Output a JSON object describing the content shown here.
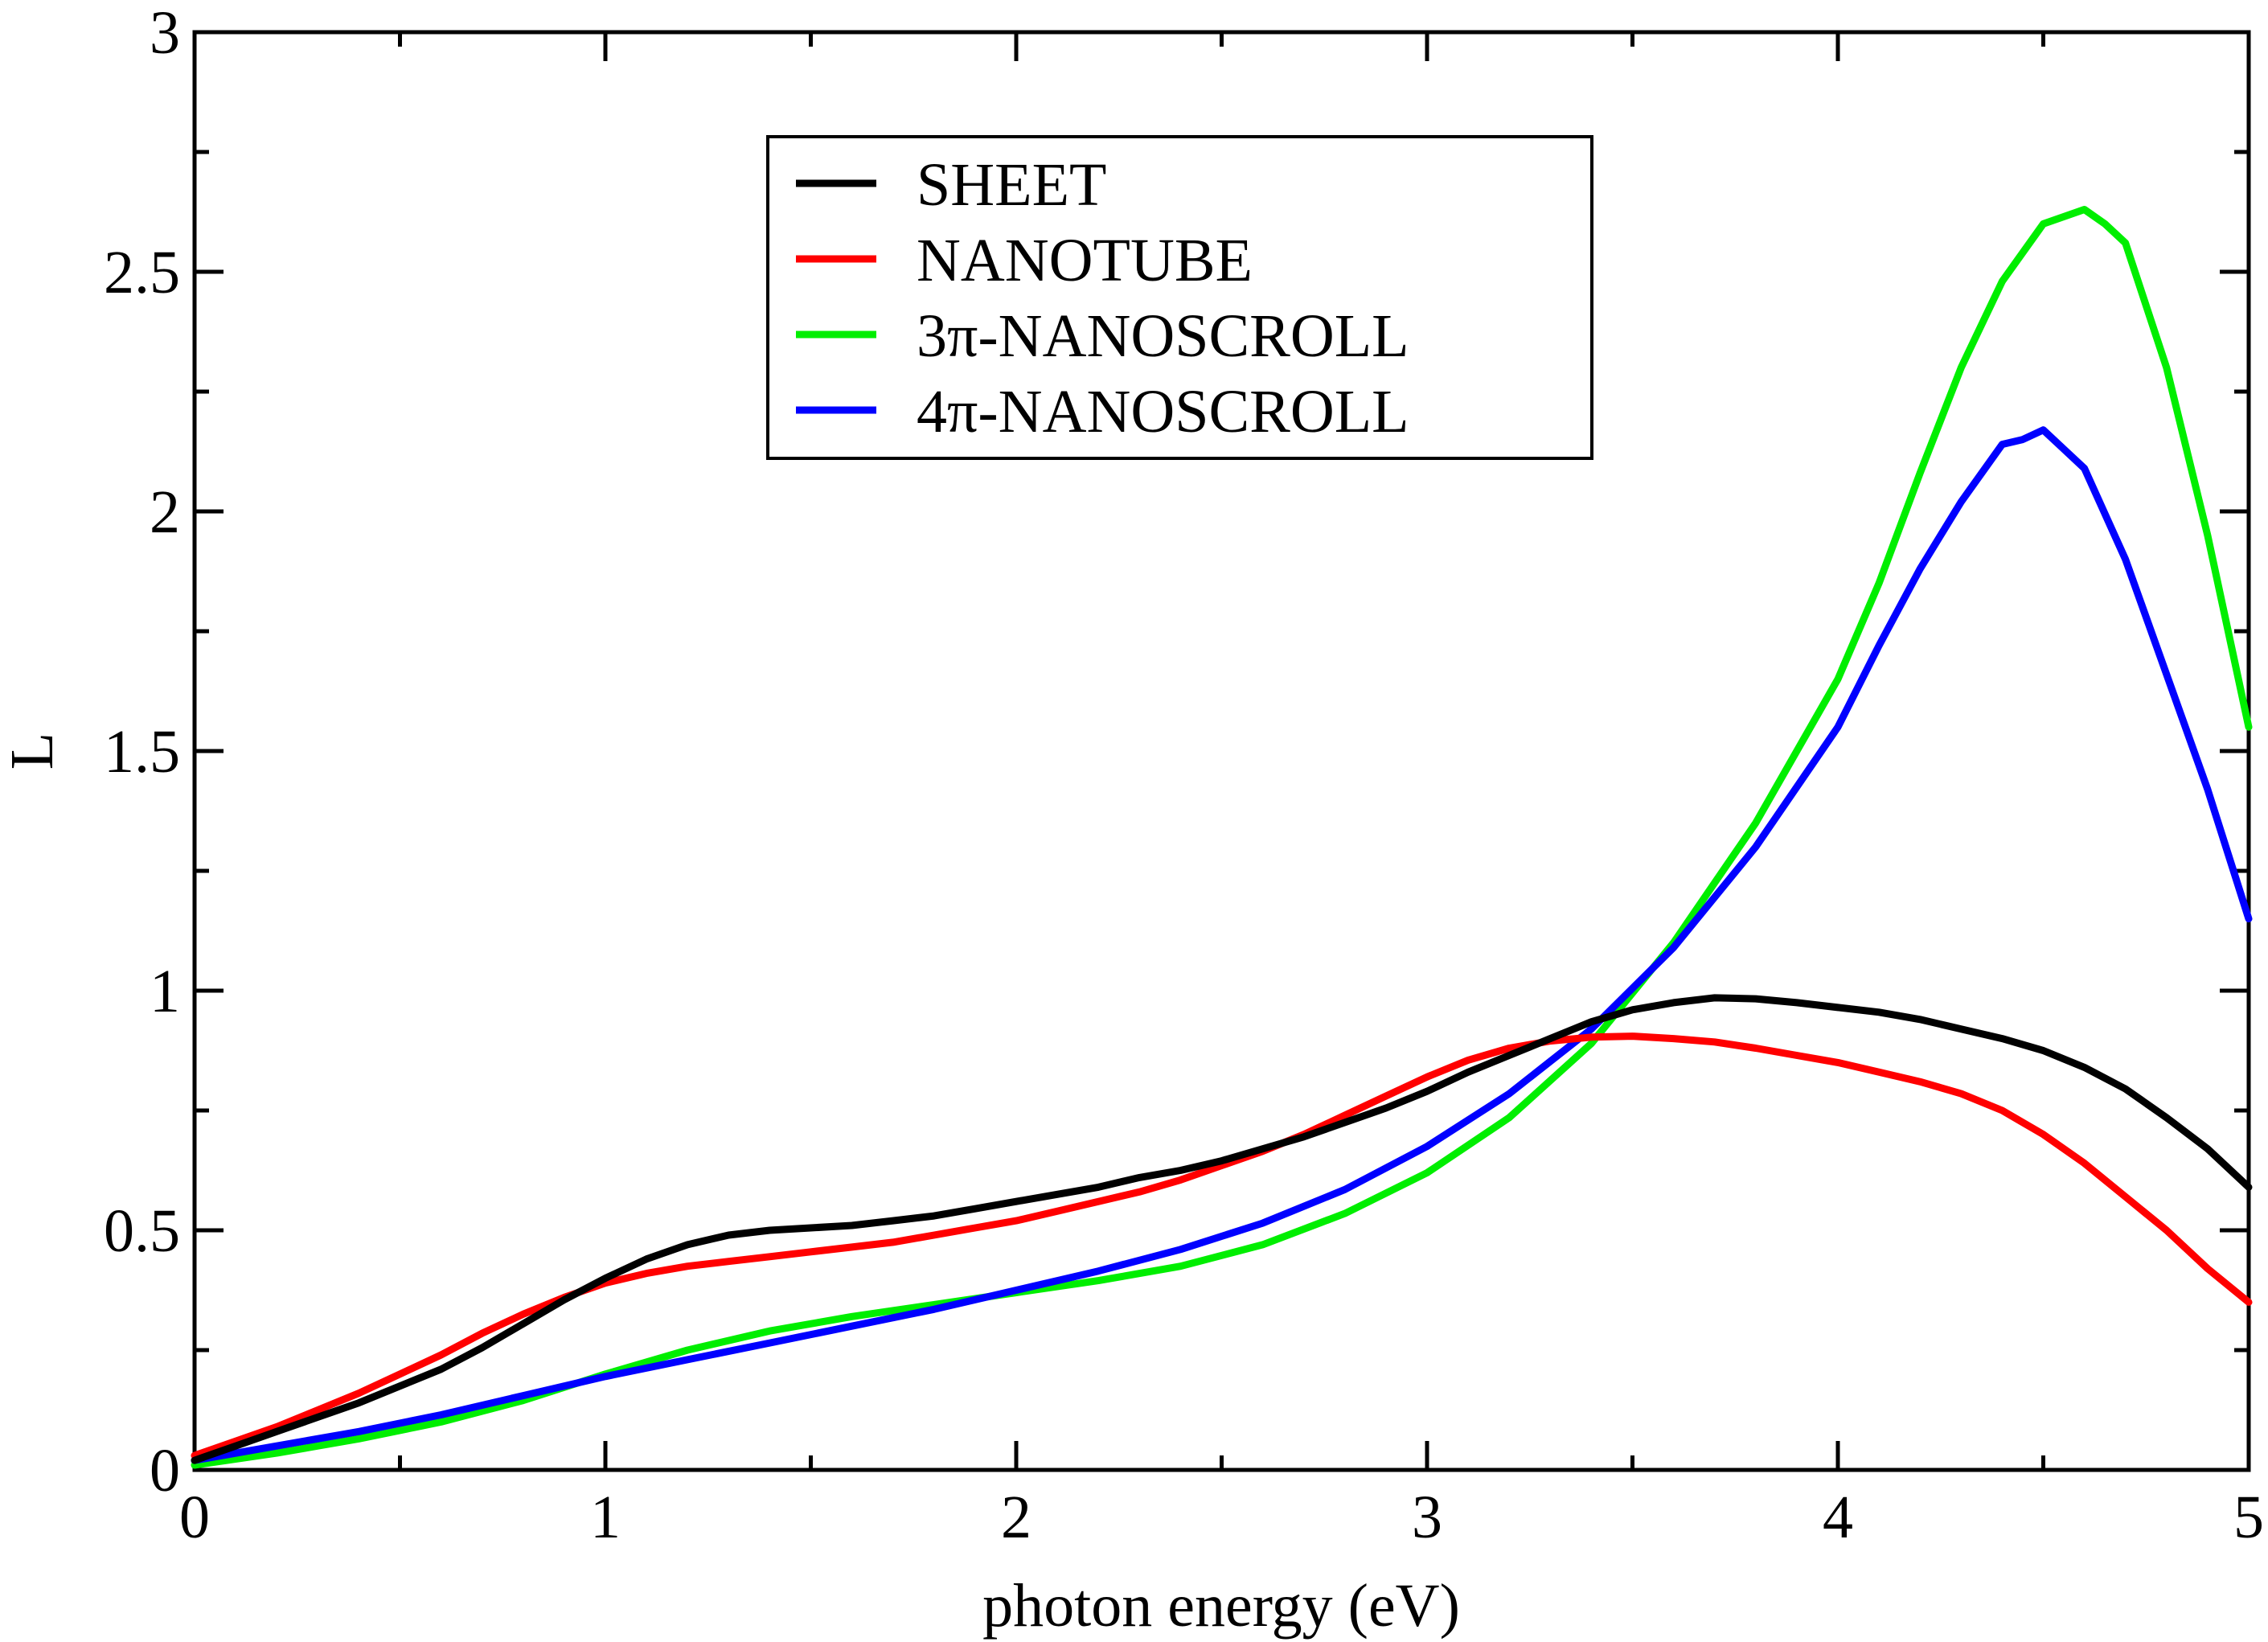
{
  "chart_data": {
    "type": "line",
    "title": "",
    "xlabel": "photon energy (eV)",
    "ylabel": "L",
    "xlim": [
      0,
      5
    ],
    "ylim": [
      0,
      3
    ],
    "xticks": [
      0,
      1,
      2,
      3,
      4,
      5
    ],
    "xtick_labels": [
      "0",
      "1",
      "2",
      "3",
      "4",
      "5"
    ],
    "yticks": [
      0,
      0.5,
      1,
      1.5,
      2,
      2.5,
      3
    ],
    "ytick_labels": [
      "0",
      "0.5",
      "1",
      "1.5",
      "2",
      "2.5",
      "3"
    ],
    "grid": false,
    "legend_position": "top-center",
    "series": [
      {
        "name": "SHEET",
        "color": "#000000",
        "x": [
          0,
          0.1,
          0.2,
          0.3,
          0.4,
          0.5,
          0.6,
          0.7,
          0.8,
          0.9,
          1.0,
          1.1,
          1.2,
          1.3,
          1.4,
          1.5,
          1.6,
          1.7,
          1.8,
          1.9,
          2.0,
          2.1,
          2.2,
          2.3,
          2.4,
          2.5,
          2.6,
          2.7,
          2.8,
          2.9,
          3.0,
          3.1,
          3.2,
          3.3,
          3.4,
          3.5,
          3.6,
          3.7,
          3.8,
          3.9,
          4.0,
          4.1,
          4.2,
          4.3,
          4.4,
          4.5,
          4.6,
          4.7,
          4.8,
          4.9,
          5.0
        ],
        "y": [
          0.02,
          0.05,
          0.08,
          0.11,
          0.14,
          0.175,
          0.21,
          0.255,
          0.305,
          0.355,
          0.4,
          0.44,
          0.47,
          0.49,
          0.5,
          0.505,
          0.51,
          0.52,
          0.53,
          0.545,
          0.56,
          0.575,
          0.59,
          0.61,
          0.625,
          0.645,
          0.67,
          0.695,
          0.725,
          0.755,
          0.79,
          0.83,
          0.865,
          0.9,
          0.935,
          0.96,
          0.975,
          0.985,
          0.983,
          0.975,
          0.965,
          0.955,
          0.94,
          0.92,
          0.9,
          0.875,
          0.84,
          0.795,
          0.735,
          0.67,
          0.59
        ]
      },
      {
        "name": "NANOTUBE",
        "color": "#ff0000",
        "x": [
          0,
          0.1,
          0.2,
          0.3,
          0.4,
          0.5,
          0.6,
          0.7,
          0.8,
          0.9,
          1.0,
          1.1,
          1.2,
          1.3,
          1.4,
          1.5,
          1.6,
          1.7,
          1.8,
          1.9,
          2.0,
          2.1,
          2.2,
          2.3,
          2.4,
          2.5,
          2.6,
          2.7,
          2.8,
          2.9,
          3.0,
          3.1,
          3.2,
          3.3,
          3.4,
          3.5,
          3.6,
          3.7,
          3.8,
          3.9,
          4.0,
          4.1,
          4.2,
          4.3,
          4.4,
          4.5,
          4.6,
          4.7,
          4.8,
          4.9,
          5.0
        ],
        "y": [
          0.03,
          0.06,
          0.09,
          0.125,
          0.16,
          0.2,
          0.24,
          0.285,
          0.325,
          0.36,
          0.39,
          0.41,
          0.425,
          0.435,
          0.445,
          0.455,
          0.465,
          0.475,
          0.49,
          0.505,
          0.52,
          0.54,
          0.56,
          0.58,
          0.605,
          0.635,
          0.665,
          0.7,
          0.74,
          0.78,
          0.82,
          0.855,
          0.88,
          0.895,
          0.903,
          0.905,
          0.9,
          0.893,
          0.88,
          0.865,
          0.85,
          0.83,
          0.81,
          0.785,
          0.75,
          0.7,
          0.64,
          0.57,
          0.5,
          0.42,
          0.35
        ]
      },
      {
        "name": "3π-NANOSCROLL",
        "color": "#00ee00",
        "x": [
          0,
          0.2,
          0.4,
          0.6,
          0.8,
          1.0,
          1.2,
          1.4,
          1.6,
          1.8,
          2.0,
          2.2,
          2.4,
          2.6,
          2.8,
          3.0,
          3.2,
          3.4,
          3.6,
          3.8,
          4.0,
          4.1,
          4.2,
          4.3,
          4.4,
          4.5,
          4.6,
          4.65,
          4.7,
          4.8,
          4.9,
          5.0
        ],
        "y": [
          0.01,
          0.035,
          0.065,
          0.1,
          0.145,
          0.2,
          0.25,
          0.29,
          0.32,
          0.345,
          0.37,
          0.395,
          0.425,
          0.47,
          0.535,
          0.62,
          0.735,
          0.89,
          1.1,
          1.35,
          1.65,
          1.85,
          2.08,
          2.3,
          2.48,
          2.6,
          2.63,
          2.6,
          2.56,
          2.3,
          1.95,
          1.55
        ]
      },
      {
        "name": "4π-NANOSCROLL",
        "color": "#0000ff",
        "x": [
          0,
          0.2,
          0.4,
          0.6,
          0.8,
          1.0,
          1.2,
          1.4,
          1.6,
          1.8,
          2.0,
          2.2,
          2.4,
          2.6,
          2.8,
          3.0,
          3.2,
          3.4,
          3.6,
          3.8,
          4.0,
          4.1,
          4.2,
          4.3,
          4.4,
          4.45,
          4.5,
          4.55,
          4.6,
          4.7,
          4.8,
          4.9,
          5.0
        ],
        "y": [
          0.02,
          0.05,
          0.08,
          0.115,
          0.155,
          0.195,
          0.23,
          0.265,
          0.3,
          0.335,
          0.375,
          0.415,
          0.46,
          0.515,
          0.585,
          0.675,
          0.785,
          0.92,
          1.09,
          1.3,
          1.55,
          1.72,
          1.88,
          2.02,
          2.14,
          2.15,
          2.17,
          2.13,
          2.09,
          1.9,
          1.66,
          1.42,
          1.15
        ]
      }
    ]
  }
}
